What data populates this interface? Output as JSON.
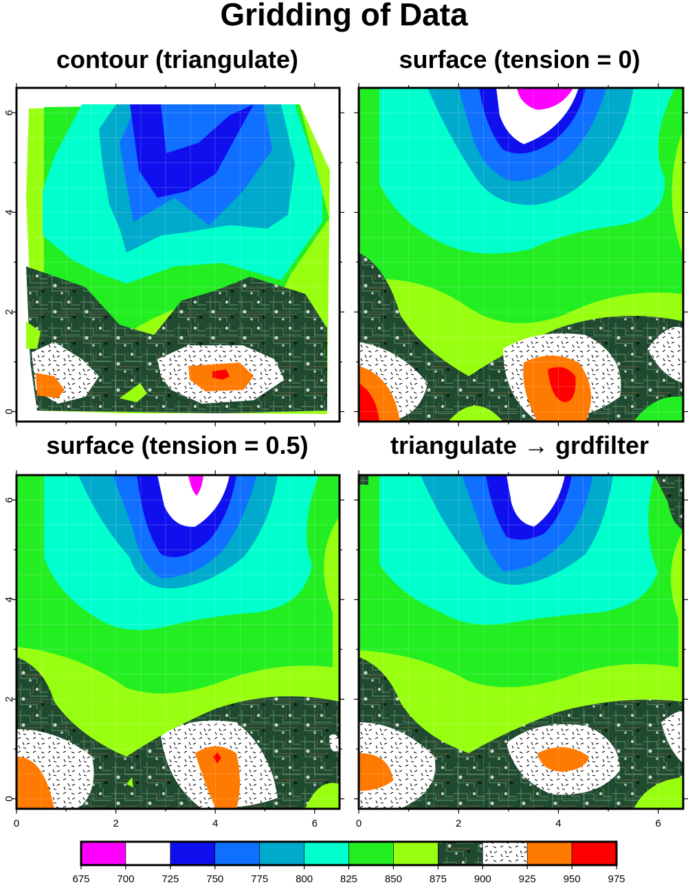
{
  "title": "Gridding of Data",
  "panels": [
    {
      "title": "contour (triangulate)"
    },
    {
      "title": "surface (tension = 0)"
    },
    {
      "title": "surface (tension = 0.5)"
    },
    {
      "title": "triangulate → grdfilter"
    }
  ],
  "chart_data": {
    "type": "heatmap",
    "xlim": [
      0,
      6.5
    ],
    "ylim": [
      -0.2,
      6.5
    ],
    "x_ticks": [
      "0",
      "2",
      "4",
      "6"
    ],
    "y_ticks": [
      "0",
      "2",
      "4",
      "6"
    ],
    "colorbar": {
      "ticks": [
        "675",
        "700",
        "725",
        "750",
        "775",
        "800",
        "825",
        "850",
        "875",
        "900",
        "925",
        "950",
        "975"
      ],
      "bins": [
        {
          "range": [
            675,
            700
          ],
          "fill": "#ff00ff"
        },
        {
          "range": [
            700,
            725
          ],
          "fill": "#ffffff"
        },
        {
          "range": [
            725,
            750
          ],
          "fill": "#1010ee"
        },
        {
          "range": [
            750,
            775
          ],
          "fill": "#1070ff"
        },
        {
          "range": [
            775,
            800
          ],
          "fill": "#00aacc"
        },
        {
          "range": [
            800,
            825
          ],
          "fill": "#00ffcc"
        },
        {
          "range": [
            825,
            850
          ],
          "fill": "#22ee22"
        },
        {
          "range": [
            850,
            875
          ],
          "fill": "#99ff11"
        },
        {
          "range": [
            875,
            900
          ],
          "fill": "pattern-circuit-board"
        },
        {
          "range": [
            900,
            925
          ],
          "fill": "pattern-dashes"
        },
        {
          "range": [
            925,
            950
          ],
          "fill": "#ff7a00"
        },
        {
          "range": [
            950,
            975
          ],
          "fill": "#ff0000"
        }
      ]
    }
  }
}
